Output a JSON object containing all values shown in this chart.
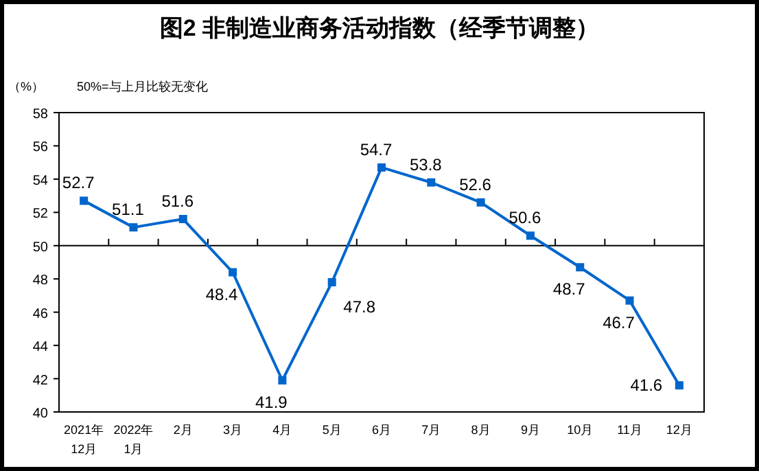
{
  "chart_data": {
    "type": "line",
    "title": "图2 非制造业商务活动指数（经季节调整）",
    "ylabel": "（%）",
    "annotations": [
      "50%=与上月比较无变化"
    ],
    "categories": [
      "2021年\n12月",
      "2022年\n1月",
      "2月",
      "3月",
      "4月",
      "5月",
      "6月",
      "7月",
      "8月",
      "9月",
      "10月",
      "11月",
      "12月"
    ],
    "series": [
      {
        "color": "#0066cc",
        "values": [
          52.7,
          51.1,
          51.6,
          48.4,
          41.9,
          47.8,
          54.7,
          53.8,
          52.6,
          50.6,
          48.7,
          46.7,
          41.6
        ]
      }
    ],
    "ylim": [
      40,
      58
    ],
    "yticks": [
      40,
      42,
      44,
      46,
      48,
      50,
      52,
      54,
      56,
      58
    ],
    "ref_lines": [
      {
        "axis": "y",
        "value": 50,
        "color": "#000000"
      }
    ],
    "data_labels": true,
    "marker": "square",
    "grid": false
  }
}
